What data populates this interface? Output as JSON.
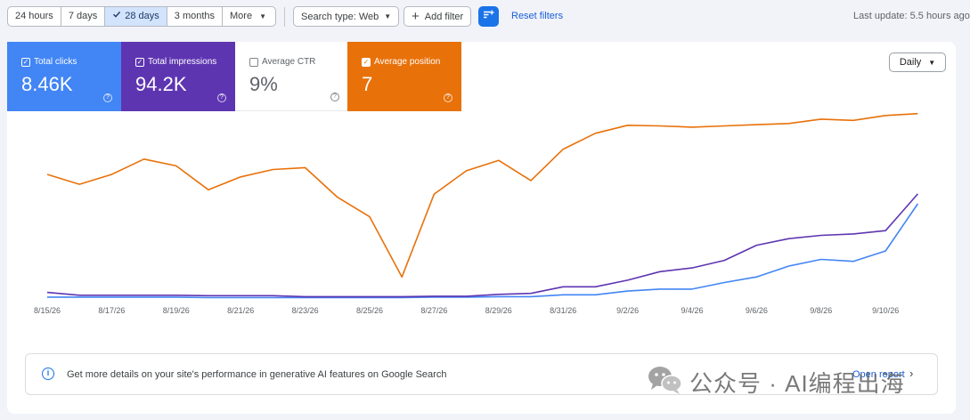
{
  "toolbar": {
    "ranges": [
      {
        "label": "24 hours",
        "active": false
      },
      {
        "label": "7 days",
        "active": false
      },
      {
        "label": "28 days",
        "active": true
      },
      {
        "label": "3 months",
        "active": false
      },
      {
        "label": "More",
        "active": false
      }
    ],
    "search_type_label": "Search type: Web",
    "add_filter_label": "Add filter",
    "reset_filters_label": "Reset filters",
    "last_update": "Last update: 5.5 hours ago"
  },
  "metrics": {
    "clicks": {
      "label": "Total clicks",
      "value": "8.46K",
      "checked": true,
      "color": "#4285f4"
    },
    "impressions": {
      "label": "Total impressions",
      "value": "94.2K",
      "checked": true,
      "color": "#5e35b1"
    },
    "ctr": {
      "label": "Average CTR",
      "value": "9%",
      "checked": false
    },
    "position": {
      "label": "Average position",
      "value": "7",
      "checked": true,
      "color": "#e8710a"
    }
  },
  "granularity": "Daily",
  "chart_data": {
    "type": "line",
    "x": [
      "8/15/26",
      "8/16/26",
      "8/17/26",
      "8/18/26",
      "8/19/26",
      "8/20/26",
      "8/21/26",
      "8/22/26",
      "8/23/26",
      "8/24/26",
      "8/25/26",
      "8/26/26",
      "8/27/26",
      "8/28/26",
      "8/29/26",
      "8/30/26",
      "8/31/26",
      "9/1/26",
      "9/2/26",
      "9/3/26",
      "9/4/26",
      "9/5/26",
      "9/6/26",
      "9/7/26",
      "9/8/26",
      "9/9/26",
      "9/10/26",
      "9/11/26"
    ],
    "x_tick_labels": [
      "8/15/26",
      "8/17/26",
      "8/19/26",
      "8/21/26",
      "8/23/26",
      "8/25/26",
      "8/27/26",
      "8/29/26",
      "8/31/26",
      "9/2/26",
      "9/4/26",
      "9/6/26",
      "9/8/26",
      "9/10/26"
    ],
    "series": [
      {
        "name": "Total clicks",
        "color": "#4285f4",
        "values": [
          2,
          2,
          2,
          2,
          2,
          1,
          1,
          1,
          1,
          1,
          1,
          1,
          2,
          2,
          3,
          3,
          7,
          7,
          15,
          19,
          19,
          33,
          45,
          68,
          82,
          78,
          100,
          200
        ]
      },
      {
        "name": "Total impressions",
        "color": "#5e35b1",
        "values": [
          12,
          6,
          6,
          6,
          6,
          5,
          5,
          5,
          3,
          3,
          3,
          3,
          4,
          4,
          8,
          10,
          24,
          24,
          38,
          56,
          64,
          80,
          112,
          126,
          133,
          136,
          143,
          221
        ]
      },
      {
        "name": "Average position",
        "color": "#e8710a",
        "values": [
          13.7,
          15.3,
          13.7,
          11.2,
          12.3,
          16.2,
          14.1,
          12.9,
          12.6,
          17.4,
          20.6,
          30.4,
          16.9,
          13.1,
          11.4,
          14.7,
          9.6,
          7.0,
          5.7,
          5.8,
          6.0,
          5.8,
          5.6,
          5.4,
          4.7,
          4.9,
          4.1,
          3.8
        ]
      }
    ],
    "grid": false,
    "legend": "none"
  },
  "banner": {
    "message": "Get more details on your site's performance in generative AI features on Google Search",
    "link": "Open report"
  },
  "watermark": {
    "text": "公众号 · AI编程出海"
  }
}
